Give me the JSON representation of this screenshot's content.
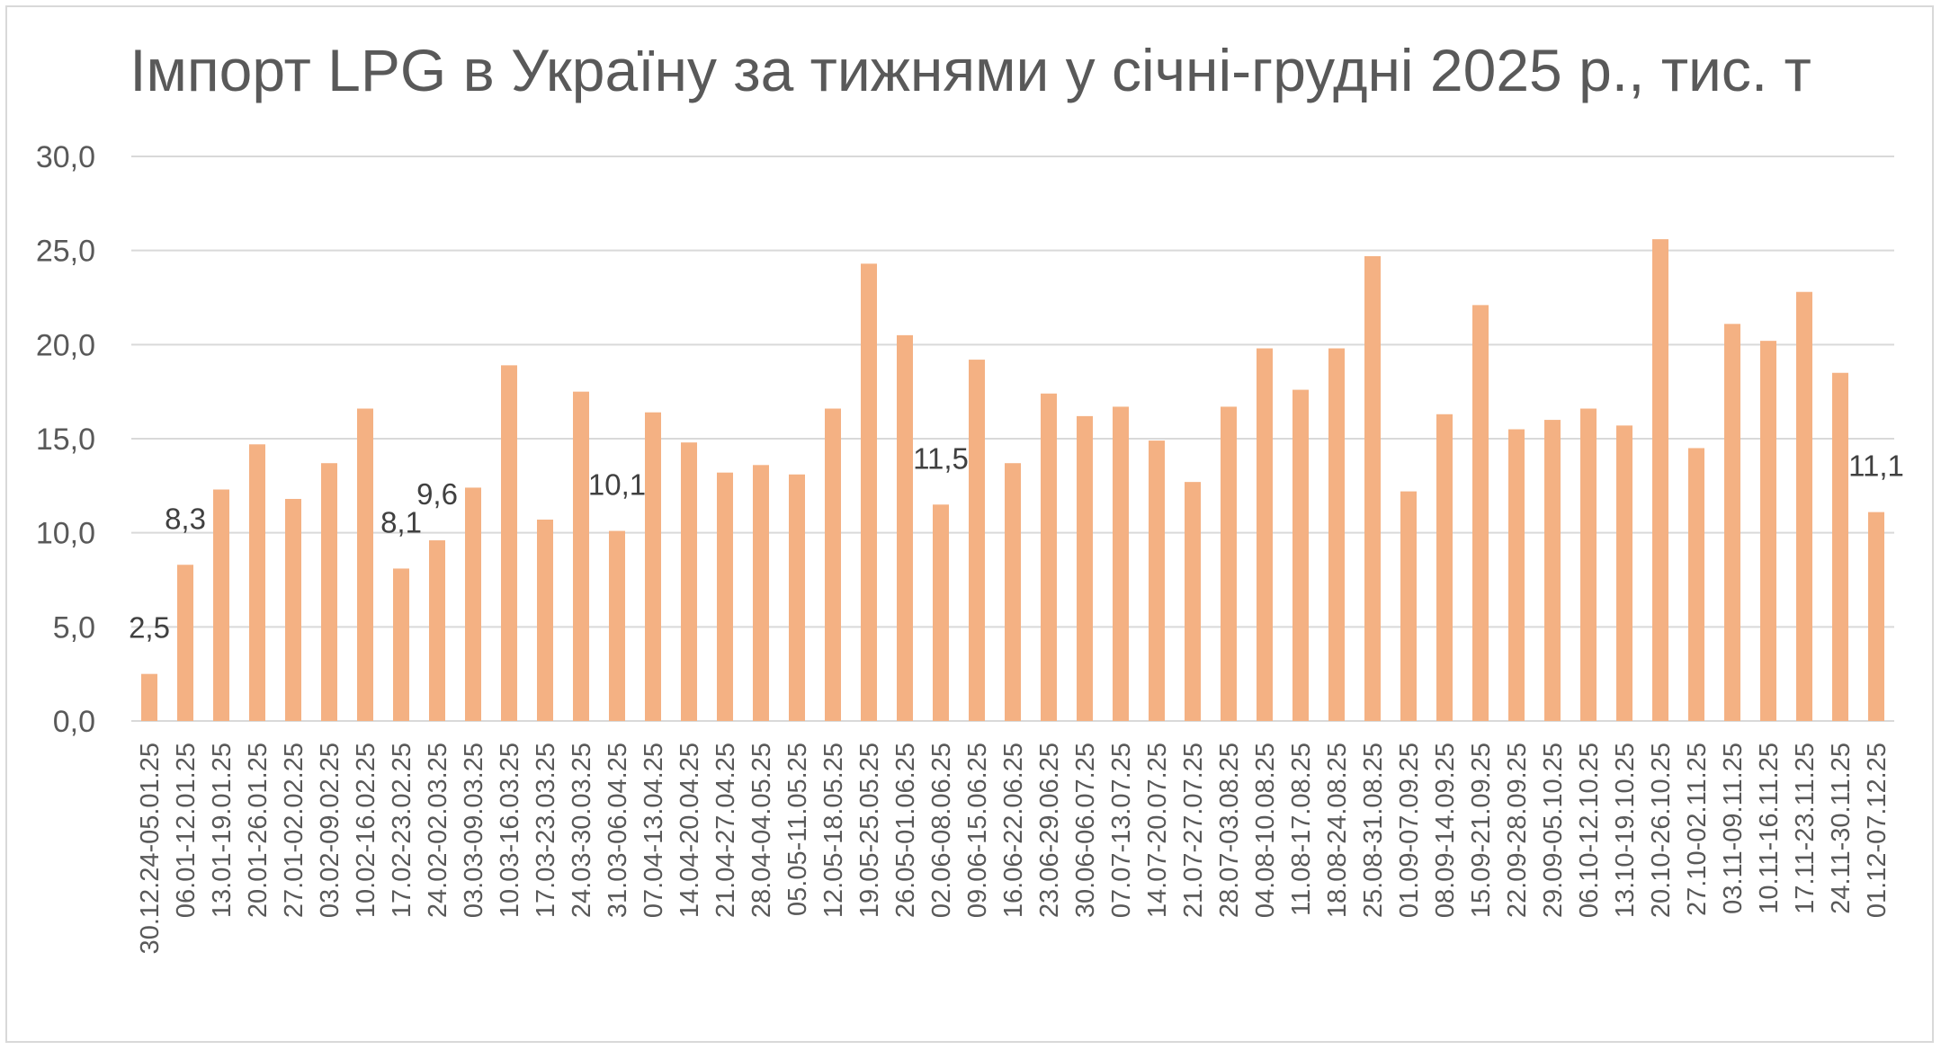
{
  "chart_data": {
    "type": "bar",
    "title": "Імпорт LPG в Україну за тижнями у січні-грудні 2025 р., тис. т",
    "xlabel": "",
    "ylabel": "",
    "ylim": [
      0,
      30
    ],
    "yticks": [
      "0,0",
      "5,0",
      "10,0",
      "15,0",
      "20,0",
      "25,0",
      "30,0"
    ],
    "grid": true,
    "legend": "none",
    "bar_color": "#F4B183",
    "categories": [
      "30.12.24-05.01.25",
      "06.01-12.01.25",
      "13.01-19.01.25",
      "20.01-26.01.25",
      "27.01-02.02.25",
      "03.02-09.02.25",
      "10.02-16.02.25",
      "17.02-23.02.25",
      "24.02-02.03.25",
      "03.03-09.03.25",
      "10.03-16.03.25",
      "17.03-23.03.25",
      "24.03-30.03.25",
      "31.03-06.04.25",
      "07.04-13.04.25",
      "14.04-20.04.25",
      "21.04-27.04.25",
      "28.04-04.05.25",
      "05.05-11.05.25",
      "12.05-18.05.25",
      "19.05-25.05.25",
      "26.05-01.06.25",
      "02.06-08.06.25",
      "09.06-15.06.25",
      "16.06-22.06.25",
      "23.06-29.06.25",
      "30.06-06.07.25",
      "07.07-13.07.25",
      "14.07-20.07.25",
      "21.07-27.07.25",
      "28.07-03.08.25",
      "04.08-10.08.25",
      "11.08-17.08.25",
      "18.08-24.08.25",
      "25.08-31.08.25",
      "01.09-07.09.25",
      "08.09-14.09.25",
      "15.09-21.09.25",
      "22.09-28.09.25",
      "29.09-05.10.25",
      "06.10-12.10.25",
      "13.10-19.10.25",
      "20.10-26.10.25",
      "27.10-02.11.25",
      "03.11-09.11.25",
      "10.11-16.11.25",
      "17.11-23.11.25",
      "24.11-30.11.25",
      "01.12-07.12.25"
    ],
    "values": [
      2.5,
      8.3,
      12.3,
      14.7,
      11.8,
      13.7,
      16.6,
      8.1,
      9.6,
      12.4,
      18.9,
      10.7,
      17.5,
      10.1,
      16.4,
      14.8,
      13.2,
      13.6,
      13.1,
      16.6,
      24.3,
      20.5,
      11.5,
      19.2,
      13.7,
      17.4,
      16.2,
      16.7,
      14.9,
      12.7,
      16.7,
      19.8,
      17.6,
      19.8,
      24.7,
      12.2,
      16.3,
      22.1,
      15.5,
      16.0,
      16.6,
      15.7,
      25.6,
      14.5,
      21.1,
      20.2,
      22.8,
      18.5,
      11.1
    ],
    "data_labels": [
      {
        "index": 0,
        "text": "2,5"
      },
      {
        "index": 1,
        "text": "8,3"
      },
      {
        "index": 7,
        "text": "8,1"
      },
      {
        "index": 8,
        "text": "9,6"
      },
      {
        "index": 13,
        "text": "10,1"
      },
      {
        "index": 22,
        "text": "11,5"
      },
      {
        "index": 48,
        "text": "11,1"
      }
    ]
  }
}
